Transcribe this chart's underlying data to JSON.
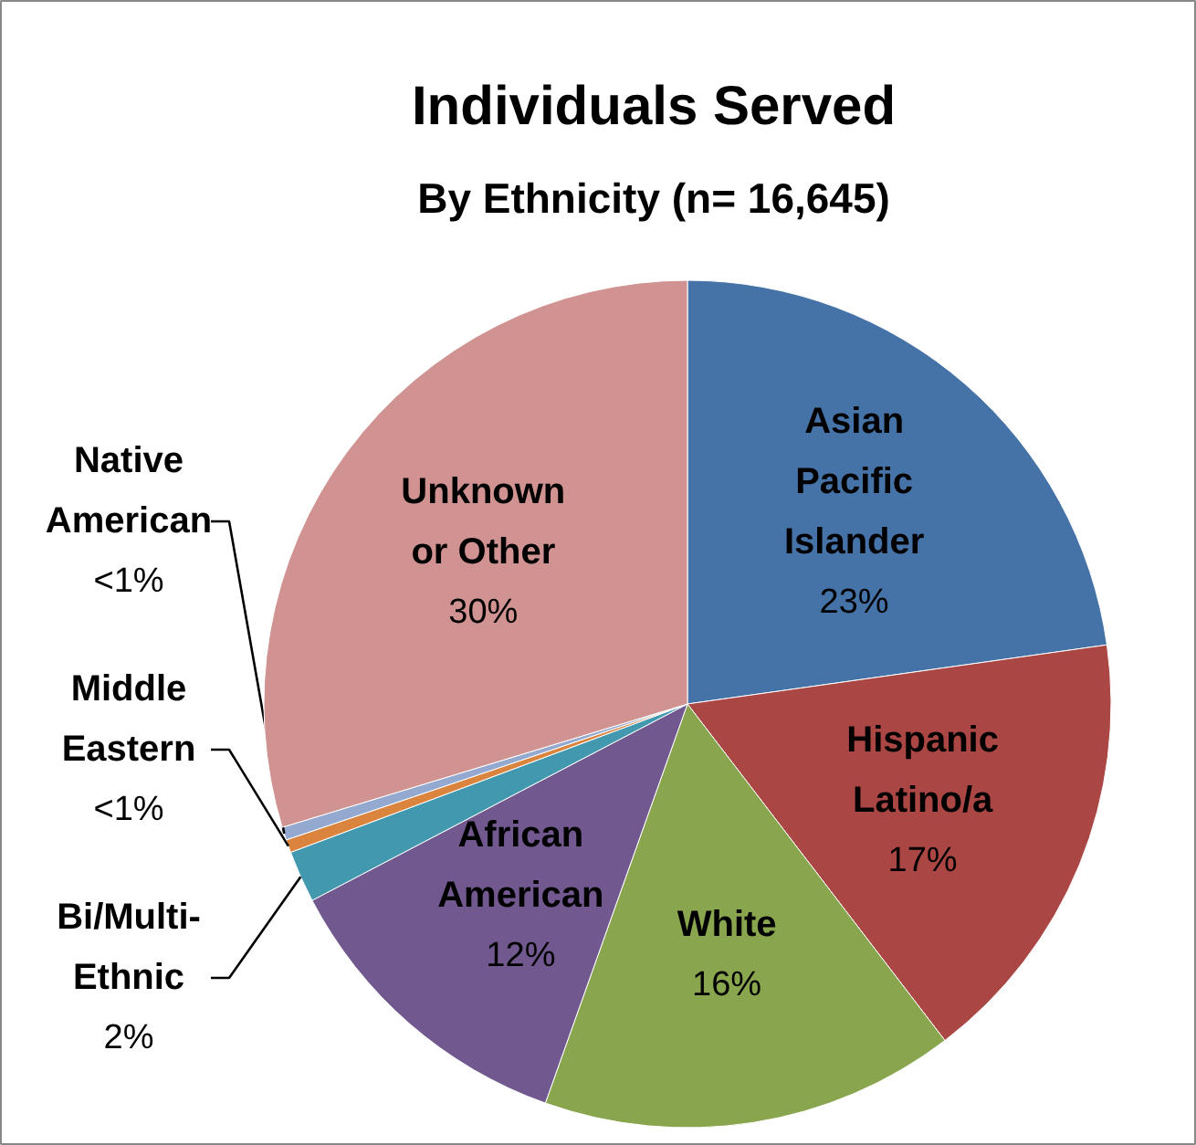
{
  "chart_data": {
    "type": "pie",
    "title": "Individuals Served",
    "subtitle": "By Ethnicity (n= 16,645)",
    "categories": [
      "Asian\nPacific\nIslander",
      "Hispanic\nLatino/a",
      "White",
      "African\nAmerican",
      "Bi/Multi-\nEthnic",
      "Middle\nEastern",
      "Native\nAmerican",
      "Unknown\nor Other"
    ],
    "values": [
      23,
      17,
      16,
      12,
      2,
      0.5,
      0.5,
      30
    ],
    "value_labels": [
      "23%",
      "17%",
      "16%",
      "12%",
      "2%",
      "<1%",
      "<1%",
      "30%"
    ],
    "colors": [
      "#4572a7",
      "#aa4643",
      "#89a54e",
      "#71588f",
      "#4198af",
      "#db843d",
      "#93a9cf",
      "#d19392"
    ]
  }
}
